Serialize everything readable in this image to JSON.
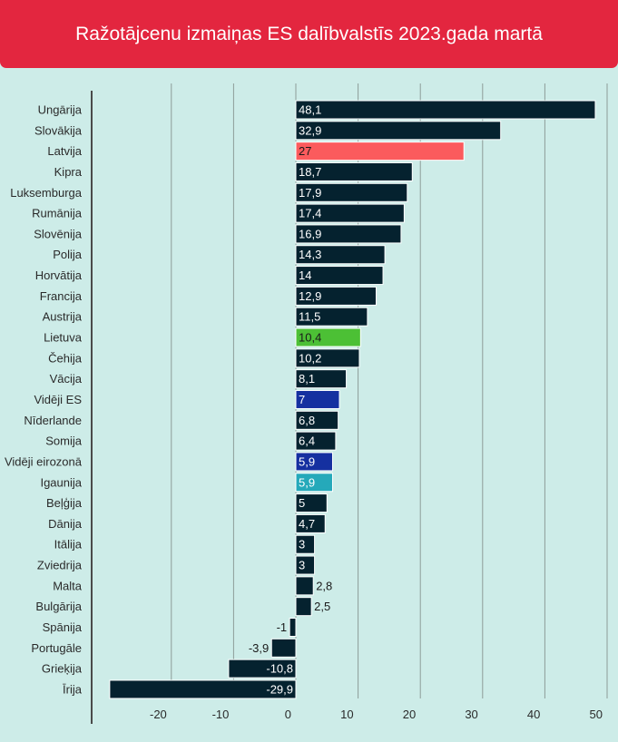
{
  "header": {
    "title": "Ražotājcenu izmaiņas ES dalībvalstīs 2023.gada martā",
    "background": "#e3263f"
  },
  "colors": {
    "default_bar": "#05222f",
    "latvia": "#fb5b5d",
    "lietuva": "#4cc035",
    "eu_average": "#1530a0",
    "eurozone_average": "#1530a0",
    "igaunija": "#25a9ba",
    "gridline": "#8d9c98",
    "axis": "#4a4a4a"
  },
  "chart_data": {
    "type": "bar",
    "orientation": "horizontal",
    "title": "Ražotājcenu izmaiņas ES dalībvalstīs 2023.gada martā",
    "xlabel": "",
    "ylabel": "",
    "xlim": [
      -30,
      50
    ],
    "xticks": [
      -20,
      -10,
      0,
      10,
      20,
      30,
      40,
      50
    ],
    "grid": true,
    "categories": [
      "Ungārija",
      "Slovākija",
      "Latvija",
      "Kipra",
      "Luksemburga",
      "Rumānija",
      "Slovēnija",
      "Polija",
      "Horvātija",
      "Francija",
      "Austrija",
      "Lietuva",
      "Čehija",
      "Vācija",
      "Vidēji ES",
      "Nīderlande",
      "Somija",
      "Vidēji eirozonā",
      "Igaunija",
      "Beļģija",
      "Dānija",
      "Itālija",
      "Zviedrija",
      "Malta",
      "Bulgārija",
      "Spānija",
      "Portugāle",
      "Grieķija",
      "Īrija"
    ],
    "values": [
      48.1,
      32.9,
      27,
      18.7,
      17.9,
      17.4,
      16.9,
      14.3,
      14,
      12.9,
      11.5,
      10.4,
      10.2,
      8.1,
      7,
      6.8,
      6.4,
      5.9,
      5.9,
      5,
      4.7,
      3,
      3,
      2.8,
      2.5,
      -1,
      -3.9,
      -10.8,
      -29.9
    ],
    "value_labels": [
      "48,1",
      "32,9",
      "27",
      "18,7",
      "17,9",
      "17,4",
      "16,9",
      "14,3",
      "14",
      "12,9",
      "11,5",
      "10,4",
      "10,2",
      "8,1",
      "7",
      "6,8",
      "6,4",
      "5,9",
      "5,9",
      "5",
      "4,7",
      "3",
      "3",
      "2,8",
      "2,5",
      "-1",
      "-3,9",
      "-10,8",
      "-29,9"
    ],
    "highlights": {
      "Latvija": "latvia",
      "Lietuva": "lietuva",
      "Vidēji ES": "eu_average",
      "Vidēji eirozonā": "eurozone_average",
      "Igaunija": "igaunija"
    }
  }
}
